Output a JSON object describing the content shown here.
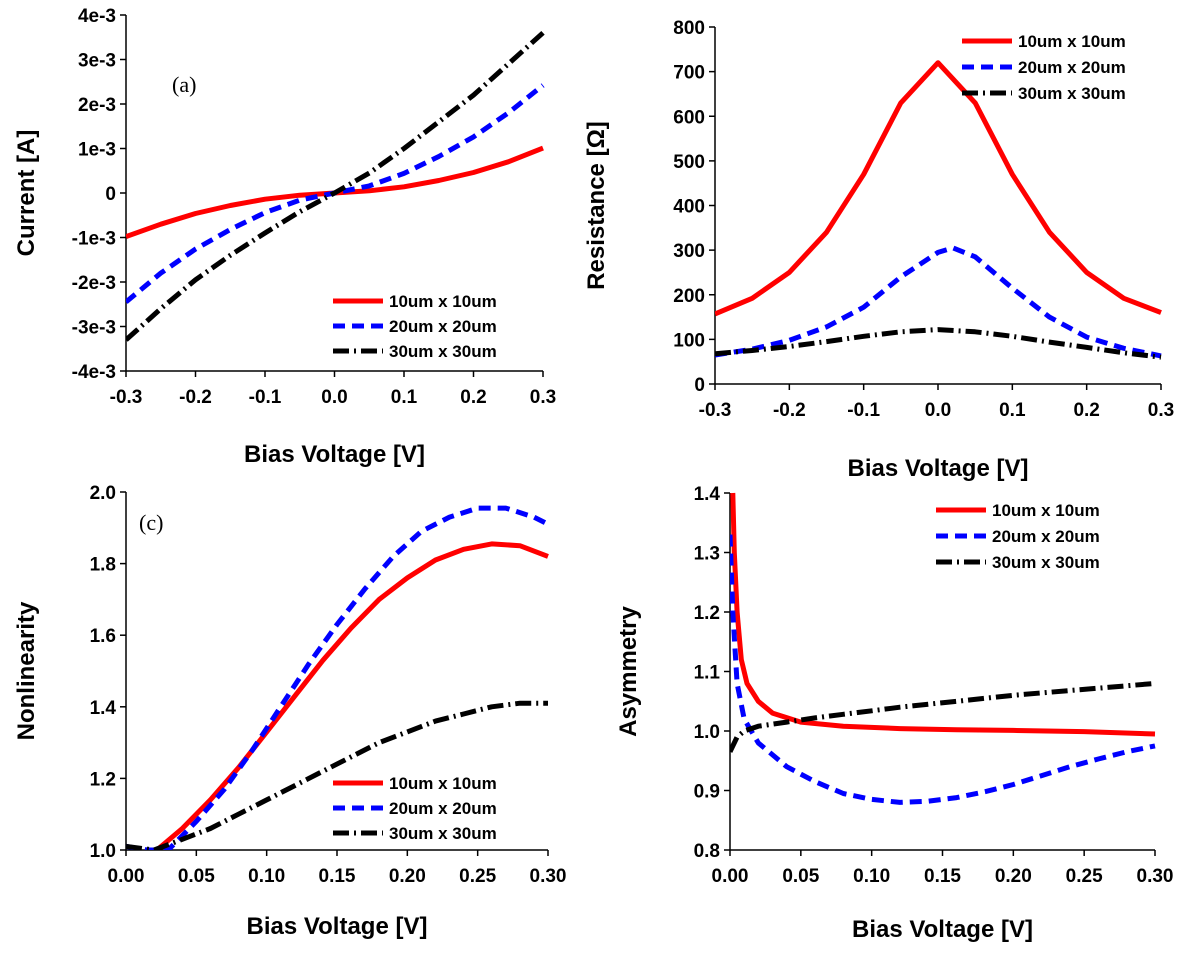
{
  "chart_data": [
    {
      "type": "line",
      "panel_label": "(a)",
      "xlabel": "Bias Voltage [V]",
      "ylabel": "Current [A]",
      "xlim": [
        -0.3,
        0.3
      ],
      "ylim": [
        -0.004,
        0.004
      ],
      "x_ticks": [
        -0.3,
        -0.2,
        -0.1,
        0.0,
        0.1,
        0.2,
        0.3
      ],
      "x_tick_labels": [
        "-0.3",
        "-0.2",
        "-0.1",
        "0.0",
        "0.1",
        "0.2",
        "0.3"
      ],
      "y_ticks": [
        -0.004,
        -0.003,
        -0.002,
        -0.001,
        0,
        0.001,
        0.002,
        0.003,
        0.004
      ],
      "y_tick_labels": [
        "-4e-3",
        "-3e-3",
        "-2e-3",
        "-1e-3",
        "0",
        "1e-3",
        "2e-3",
        "3e-3",
        "4e-3"
      ],
      "legend_position": "bottom-right",
      "grid": false,
      "series": [
        {
          "name": "10um x 10um",
          "color": "#ff0000",
          "style": "solid",
          "x": [
            -0.3,
            -0.25,
            -0.2,
            -0.15,
            -0.1,
            -0.05,
            0.0,
            0.05,
            0.1,
            0.15,
            0.2,
            0.25,
            0.3
          ],
          "y": [
            -0.00098,
            -0.0007,
            -0.00046,
            -0.00028,
            -0.00014,
            -5e-05,
            0,
            5e-05,
            0.00014,
            0.00028,
            0.00046,
            0.0007,
            0.00101
          ]
        },
        {
          "name": "20um x 20um",
          "color": "#0000ff",
          "style": "dash",
          "x": [
            -0.3,
            -0.25,
            -0.2,
            -0.15,
            -0.1,
            -0.05,
            0.0,
            0.05,
            0.1,
            0.15,
            0.2,
            0.25,
            0.3
          ],
          "y": [
            -0.00245,
            -0.0018,
            -0.00126,
            -0.00082,
            -0.00044,
            -0.00016,
            0,
            0.00016,
            0.00044,
            0.00082,
            0.00126,
            0.0018,
            0.00242
          ]
        },
        {
          "name": "30um x 30um",
          "color": "#000000",
          "style": "dashdot",
          "x": [
            -0.3,
            -0.25,
            -0.2,
            -0.15,
            -0.1,
            -0.05,
            0.0,
            0.05,
            0.1,
            0.15,
            0.2,
            0.25,
            0.3
          ],
          "y": [
            -0.0033,
            -0.0026,
            -0.00195,
            -0.0014,
            -0.0009,
            -0.00042,
            0,
            0.00045,
            0.001,
            0.0016,
            0.0022,
            0.0029,
            0.0036
          ]
        }
      ]
    },
    {
      "type": "line",
      "panel_label": "",
      "xlabel": "Bias Voltage [V]",
      "ylabel": "Resistance [Ω]",
      "xlim": [
        -0.3,
        0.3
      ],
      "ylim": [
        0,
        800
      ],
      "x_ticks": [
        -0.3,
        -0.2,
        -0.1,
        0.0,
        0.1,
        0.2,
        0.3
      ],
      "x_tick_labels": [
        "-0.3",
        "-0.2",
        "-0.1",
        "0.0",
        "0.1",
        "0.2",
        "0.3"
      ],
      "y_ticks": [
        0,
        100,
        200,
        300,
        400,
        500,
        600,
        700,
        800
      ],
      "y_tick_labels": [
        "0",
        "100",
        "200",
        "300",
        "400",
        "500",
        "600",
        "700",
        "800"
      ],
      "legend_position": "top-right",
      "grid": false,
      "series": [
        {
          "name": "10um x 10um",
          "color": "#ff0000",
          "style": "solid",
          "x": [
            -0.3,
            -0.25,
            -0.2,
            -0.15,
            -0.1,
            -0.05,
            0.0,
            0.05,
            0.1,
            0.15,
            0.2,
            0.25,
            0.3
          ],
          "y": [
            157,
            192,
            250,
            340,
            470,
            630,
            720,
            630,
            470,
            340,
            250,
            192,
            160
          ]
        },
        {
          "name": "20um x 20um",
          "color": "#0000ff",
          "style": "dash",
          "x": [
            -0.3,
            -0.25,
            -0.2,
            -0.15,
            -0.1,
            -0.05,
            0.0,
            0.02,
            0.05,
            0.1,
            0.15,
            0.2,
            0.25,
            0.3
          ],
          "y": [
            65,
            78,
            98,
            128,
            172,
            240,
            295,
            305,
            285,
            215,
            150,
            105,
            80,
            63
          ]
        },
        {
          "name": "30um x 30um",
          "color": "#000000",
          "style": "dashdot",
          "x": [
            -0.3,
            -0.25,
            -0.2,
            -0.15,
            -0.1,
            -0.05,
            0.0,
            0.05,
            0.1,
            0.15,
            0.2,
            0.25,
            0.3
          ],
          "y": [
            68,
            75,
            84,
            95,
            107,
            117,
            122,
            117,
            107,
            94,
            82,
            70,
            60
          ]
        }
      ]
    },
    {
      "type": "line",
      "panel_label": "(c)",
      "xlabel": "Bias Voltage [V]",
      "ylabel": "Nonlinearity",
      "xlim": [
        0,
        0.3
      ],
      "ylim": [
        1.0,
        2.0
      ],
      "x_ticks": [
        0,
        0.05,
        0.1,
        0.15,
        0.2,
        0.25,
        0.3
      ],
      "x_tick_labels": [
        "0.00",
        "0.05",
        "0.10",
        "0.15",
        "0.20",
        "0.25",
        "0.30"
      ],
      "y_ticks": [
        1.0,
        1.2,
        1.4,
        1.6,
        1.8,
        2.0
      ],
      "y_tick_labels": [
        "1.0",
        "1.2",
        "1.4",
        "1.6",
        "1.8",
        "2.0"
      ],
      "legend_position": "bottom-right",
      "grid": false,
      "series": [
        {
          "name": "10um x 10um",
          "color": "#ff0000",
          "style": "solid",
          "x": [
            0.022,
            0.04,
            0.06,
            0.08,
            0.1,
            0.12,
            0.14,
            0.16,
            0.18,
            0.2,
            0.22,
            0.24,
            0.26,
            0.28,
            0.3
          ],
          "y": [
            1.0,
            1.06,
            1.14,
            1.23,
            1.33,
            1.43,
            1.53,
            1.62,
            1.7,
            1.76,
            1.81,
            1.84,
            1.855,
            1.85,
            1.82
          ]
        },
        {
          "name": "20um x 20um",
          "color": "#0000ff",
          "style": "dash",
          "x": [
            0.0,
            0.015,
            0.03,
            0.05,
            0.07,
            0.09,
            0.11,
            0.13,
            0.15,
            0.17,
            0.19,
            0.21,
            0.23,
            0.25,
            0.27,
            0.29,
            0.3
          ],
          "y": [
            1.01,
            1.0,
            1.0,
            1.08,
            1.17,
            1.28,
            1.4,
            1.52,
            1.63,
            1.73,
            1.82,
            1.89,
            1.93,
            1.955,
            1.955,
            1.93,
            1.91
          ]
        },
        {
          "name": "30um x 30um",
          "color": "#000000",
          "style": "dashdot",
          "x": [
            0.0,
            0.02,
            0.04,
            0.06,
            0.08,
            0.1,
            0.12,
            0.14,
            0.16,
            0.18,
            0.2,
            0.22,
            0.24,
            0.26,
            0.28,
            0.3
          ],
          "y": [
            1.01,
            1.0,
            1.03,
            1.06,
            1.1,
            1.14,
            1.18,
            1.22,
            1.26,
            1.3,
            1.33,
            1.36,
            1.38,
            1.4,
            1.41,
            1.41
          ]
        }
      ]
    },
    {
      "type": "line",
      "panel_label": "",
      "xlabel": "Bias Voltage [V]",
      "ylabel": "Asymmetry",
      "xlim": [
        0,
        0.3
      ],
      "ylim": [
        0.8,
        1.4
      ],
      "x_ticks": [
        0,
        0.05,
        0.1,
        0.15,
        0.2,
        0.25,
        0.3
      ],
      "x_tick_labels": [
        "0.00",
        "0.05",
        "0.10",
        "0.15",
        "0.20",
        "0.25",
        "0.30"
      ],
      "y_ticks": [
        0.8,
        0.9,
        1.0,
        1.1,
        1.2,
        1.3,
        1.4
      ],
      "y_tick_labels": [
        "0.8",
        "0.9",
        "1.0",
        "1.1",
        "1.2",
        "1.3",
        "1.4"
      ],
      "legend_position": "top-right",
      "grid": false,
      "series": [
        {
          "name": "10um x 10um",
          "color": "#ff0000",
          "style": "solid",
          "x": [
            0.002,
            0.003,
            0.005,
            0.008,
            0.012,
            0.02,
            0.03,
            0.05,
            0.08,
            0.12,
            0.16,
            0.2,
            0.25,
            0.3
          ],
          "y": [
            1.4,
            1.3,
            1.2,
            1.12,
            1.08,
            1.05,
            1.03,
            1.015,
            1.008,
            1.004,
            1.002,
            1.001,
            0.999,
            0.995
          ]
        },
        {
          "name": "20um x 20um",
          "color": "#0000ff",
          "style": "dash",
          "x": [
            0.0,
            0.002,
            0.005,
            0.01,
            0.02,
            0.04,
            0.06,
            0.08,
            0.1,
            0.12,
            0.14,
            0.16,
            0.18,
            0.2,
            0.22,
            0.24,
            0.26,
            0.28,
            0.3
          ],
          "y": [
            1.33,
            1.2,
            1.08,
            1.02,
            0.98,
            0.94,
            0.915,
            0.895,
            0.885,
            0.88,
            0.882,
            0.888,
            0.898,
            0.91,
            0.925,
            0.94,
            0.953,
            0.965,
            0.975
          ]
        },
        {
          "name": "30um x 30um",
          "color": "#000000",
          "style": "dashdot",
          "x": [
            0.0,
            0.005,
            0.01,
            0.02,
            0.04,
            0.06,
            0.08,
            0.1,
            0.12,
            0.14,
            0.16,
            0.18,
            0.2,
            0.22,
            0.24,
            0.26,
            0.28,
            0.3
          ],
          "y": [
            0.965,
            0.99,
            1.0,
            1.008,
            1.015,
            1.022,
            1.028,
            1.034,
            1.04,
            1.045,
            1.05,
            1.055,
            1.06,
            1.064,
            1.068,
            1.072,
            1.076,
            1.08
          ]
        }
      ]
    }
  ]
}
